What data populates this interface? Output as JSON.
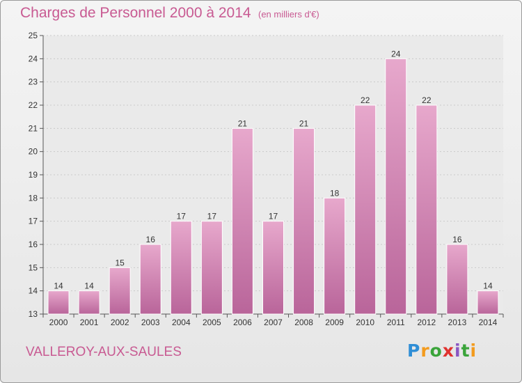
{
  "header": {
    "title": "Charges de Personnel 2000 à 2014",
    "subtitle": "(en milliers d'€)"
  },
  "footer": {
    "commune": "VALLEROY-AUX-SAULES",
    "logo_text": "Proxiti"
  },
  "colors": {
    "bar_light": "#e7a8cc",
    "bar_dark": "#b9659a",
    "accent": "#c85a92"
  },
  "chart_data": {
    "type": "bar",
    "title": "Charges de Personnel 2000 à 2014",
    "subtitle": "(en milliers d'€)",
    "xlabel": "",
    "ylabel": "",
    "categories": [
      "2000",
      "2001",
      "2002",
      "2003",
      "2004",
      "2005",
      "2006",
      "2007",
      "2008",
      "2009",
      "2010",
      "2011",
      "2012",
      "2013",
      "2014"
    ],
    "values": [
      14,
      14,
      15,
      16,
      17,
      17,
      21,
      17,
      21,
      18,
      22,
      24,
      22,
      16,
      14
    ],
    "ylim": [
      13,
      25
    ],
    "yticks": [
      "13",
      "14",
      "15",
      "16",
      "17",
      "18",
      "19",
      "20",
      "21",
      "22",
      "23",
      "24",
      "25"
    ],
    "grid": true,
    "legend": "none"
  }
}
